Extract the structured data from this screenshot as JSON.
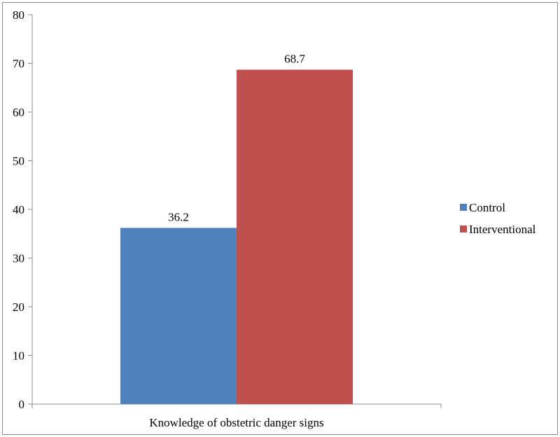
{
  "chart_data": {
    "type": "bar",
    "categories": [
      "Knowledge of obstetric danger signs"
    ],
    "series": [
      {
        "name": "Control",
        "values": [
          36.2
        ],
        "color": "#4F81BD"
      },
      {
        "name": "Interventional",
        "values": [
          68.7
        ],
        "color": "#C0504D"
      }
    ],
    "data_labels": [
      "36.2",
      "68.7"
    ],
    "y_ticks": [
      "0",
      "10",
      "20",
      "30",
      "40",
      "50",
      "60",
      "70",
      "80"
    ],
    "ylim": [
      0,
      80
    ],
    "title": "",
    "xlabel": "",
    "ylabel": "",
    "grid": false,
    "legend": "right"
  }
}
